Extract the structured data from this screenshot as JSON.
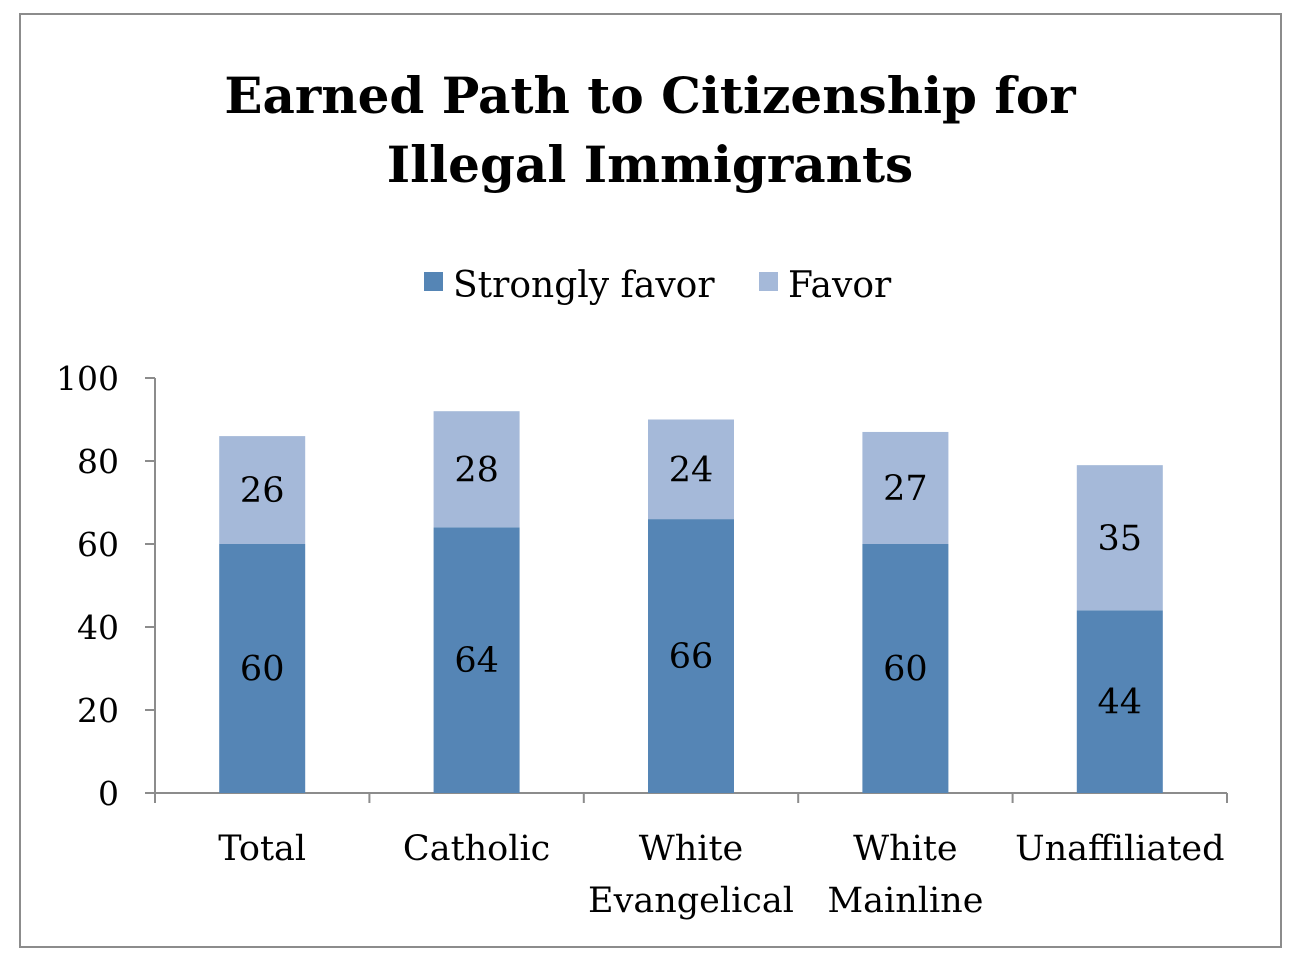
{
  "chart_data": {
    "type": "bar",
    "stacked": true,
    "title_lines": [
      "Earned Path to Citizenship for",
      "Illegal Immigrants"
    ],
    "categories": [
      [
        "Total"
      ],
      [
        "Catholic"
      ],
      [
        "White",
        "Evangelical"
      ],
      [
        "White",
        "Mainline"
      ],
      [
        "Unaffiliated"
      ]
    ],
    "series": [
      {
        "name": "Strongly favor",
        "values": [
          60,
          64,
          66,
          60,
          44
        ],
        "color": "#5585b5"
      },
      {
        "name": "Favor",
        "values": [
          26,
          28,
          24,
          27,
          35
        ],
        "color": "#a5b9d9"
      }
    ],
    "ylim": [
      0,
      100
    ],
    "yticks": [
      "0",
      "20",
      "40",
      "60",
      "80",
      "100"
    ],
    "legend_position": "top",
    "grid": false
  }
}
